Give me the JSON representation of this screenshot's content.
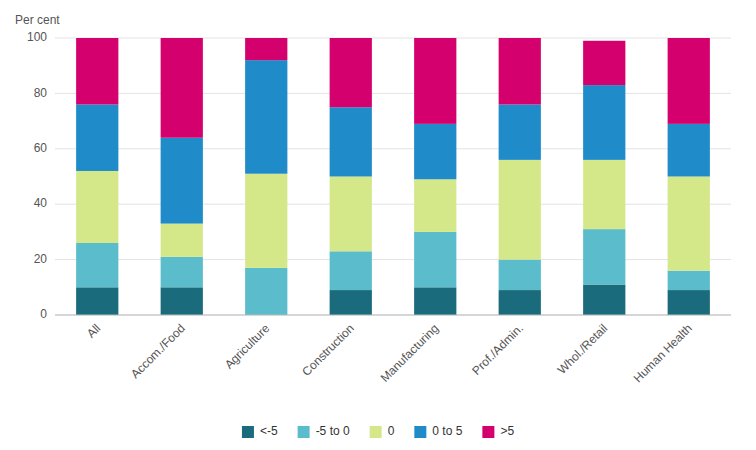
{
  "chart_data": {
    "type": "bar",
    "stacked": true,
    "y_label": "Per cent",
    "categories": [
      "All",
      "Accom./Food",
      "Agriculture",
      "Construction",
      "Manufacturing",
      "Prof./Admin.",
      "Whol./Retail",
      "Human Health"
    ],
    "series": [
      {
        "name": "<-5",
        "color": "#1a6b7c",
        "values": [
          10,
          10,
          0,
          9,
          10,
          9,
          11,
          9
        ]
      },
      {
        "name": "-5 to 0",
        "color": "#5bbccc",
        "values": [
          16,
          11,
          17,
          14,
          20,
          11,
          20,
          7
        ]
      },
      {
        "name": "0",
        "color": "#d4e88a",
        "values": [
          26,
          12,
          34,
          27,
          19,
          36,
          25,
          34
        ]
      },
      {
        "name": "0 to 5",
        "color": "#1f8bc8",
        "values": [
          24,
          31,
          41,
          25,
          20,
          20,
          27,
          19
        ]
      },
      {
        "name": ">5",
        "color": "#d4006e",
        "values": [
          24,
          36,
          8,
          25,
          31,
          24,
          16,
          31
        ]
      }
    ],
    "ylim": [
      0,
      100
    ],
    "yticks": [
      0,
      20,
      40,
      60,
      80,
      100
    ],
    "grid": true,
    "legend": "bottom"
  }
}
